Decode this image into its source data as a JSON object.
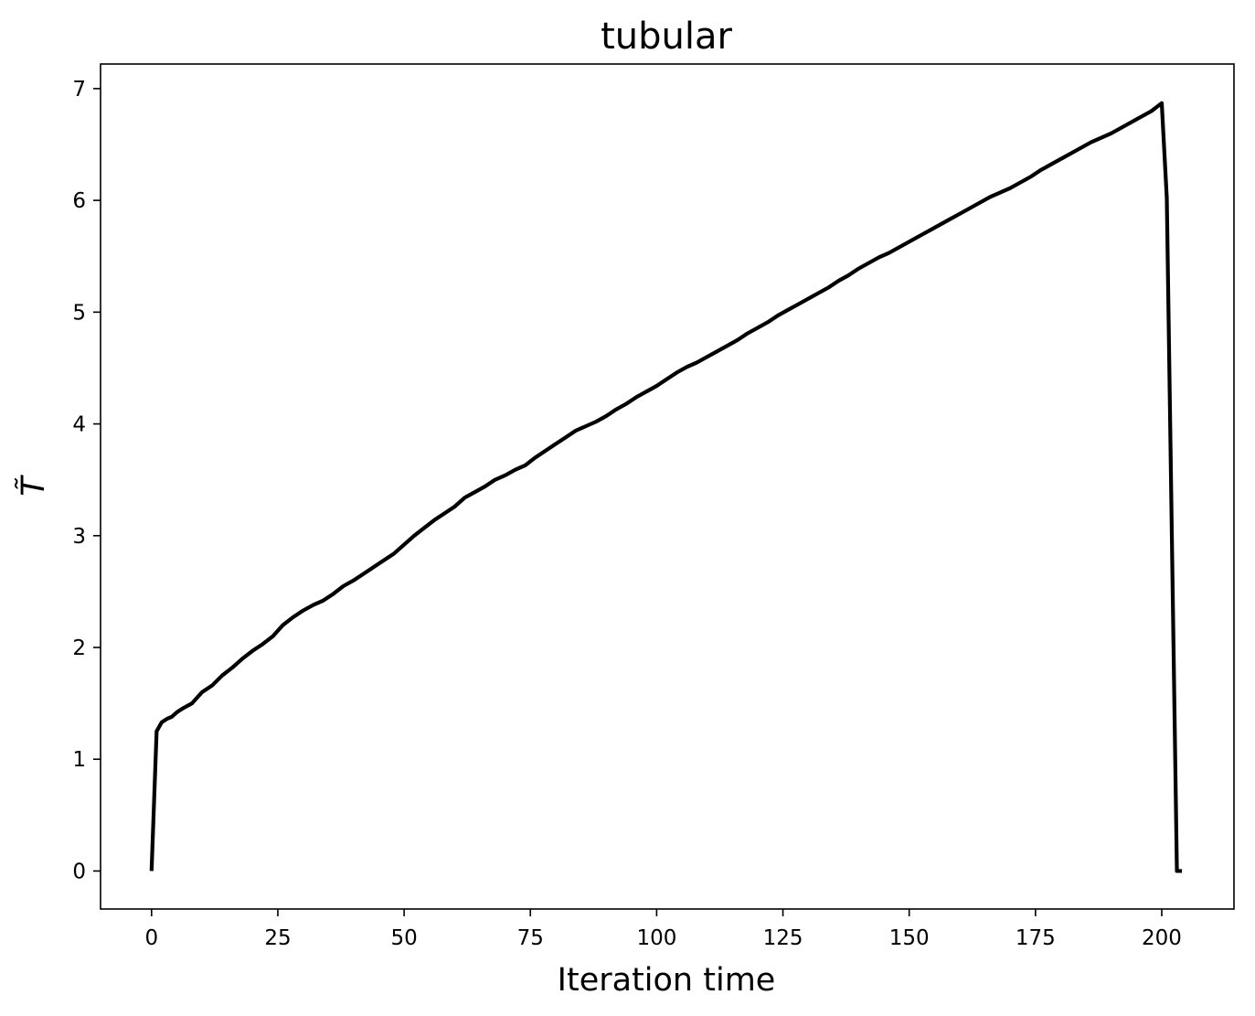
{
  "chart_data": {
    "type": "line",
    "title": "tubular",
    "xlabel": "Iteration time",
    "ylabel": "T̃",
    "xlim": [
      -10.1,
      214.3
    ],
    "ylim": [
      -0.34,
      7.22
    ],
    "grid": false,
    "legend": "none",
    "x_ticks": [
      0,
      25,
      50,
      75,
      100,
      125,
      150,
      175,
      200
    ],
    "y_ticks": [
      0,
      1,
      2,
      3,
      4,
      5,
      6,
      7
    ],
    "x_tick_labels": [
      "0",
      "25",
      "50",
      "75",
      "100",
      "125",
      "150",
      "175",
      "200"
    ],
    "y_tick_labels": [
      "0",
      "1",
      "2",
      "3",
      "4",
      "5",
      "6",
      "7"
    ],
    "series": [
      {
        "color": "#000000",
        "x": [
          0,
          1,
          2,
          3,
          4,
          5,
          6,
          8,
          10,
          12,
          14,
          16,
          18,
          20,
          22,
          24,
          26,
          28,
          30,
          32,
          34,
          36,
          38,
          40,
          42,
          44,
          46,
          48,
          50,
          52,
          54,
          56,
          58,
          60,
          62,
          64,
          66,
          68,
          70,
          72,
          74,
          76,
          78,
          80,
          82,
          84,
          86,
          88,
          90,
          92,
          94,
          96,
          98,
          100,
          102,
          104,
          106,
          108,
          110,
          112,
          114,
          116,
          118,
          120,
          122,
          124,
          126,
          128,
          130,
          132,
          134,
          136,
          138,
          140,
          142,
          144,
          146,
          148,
          150,
          152,
          154,
          156,
          158,
          160,
          162,
          164,
          166,
          168,
          170,
          172,
          174,
          176,
          178,
          180,
          182,
          184,
          186,
          188,
          190,
          192,
          194,
          196,
          198,
          200,
          201,
          202,
          203,
          204
        ],
        "y": [
          0,
          1.25,
          1.33,
          1.36,
          1.38,
          1.42,
          1.45,
          1.5,
          1.6,
          1.66,
          1.75,
          1.82,
          1.9,
          1.97,
          2.03,
          2.1,
          2.2,
          2.27,
          2.33,
          2.38,
          2.42,
          2.48,
          2.55,
          2.6,
          2.66,
          2.72,
          2.78,
          2.84,
          2.92,
          3.0,
          3.07,
          3.14,
          3.2,
          3.26,
          3.34,
          3.39,
          3.44,
          3.5,
          3.54,
          3.59,
          3.63,
          3.7,
          3.76,
          3.82,
          3.88,
          3.94,
          3.98,
          4.02,
          4.07,
          4.13,
          4.18,
          4.24,
          4.29,
          4.34,
          4.4,
          4.46,
          4.51,
          4.55,
          4.6,
          4.65,
          4.7,
          4.75,
          4.81,
          4.86,
          4.91,
          4.97,
          5.02,
          5.07,
          5.12,
          5.17,
          5.22,
          5.28,
          5.33,
          5.39,
          5.44,
          5.49,
          5.53,
          5.58,
          5.63,
          5.68,
          5.73,
          5.78,
          5.83,
          5.88,
          5.93,
          5.98,
          6.03,
          6.07,
          6.11,
          6.16,
          6.21,
          6.27,
          6.32,
          6.37,
          6.42,
          6.47,
          6.52,
          6.56,
          6.6,
          6.65,
          6.7,
          6.75,
          6.8,
          6.87,
          6.02,
          3.0,
          0.0,
          0.0
        ]
      }
    ]
  }
}
